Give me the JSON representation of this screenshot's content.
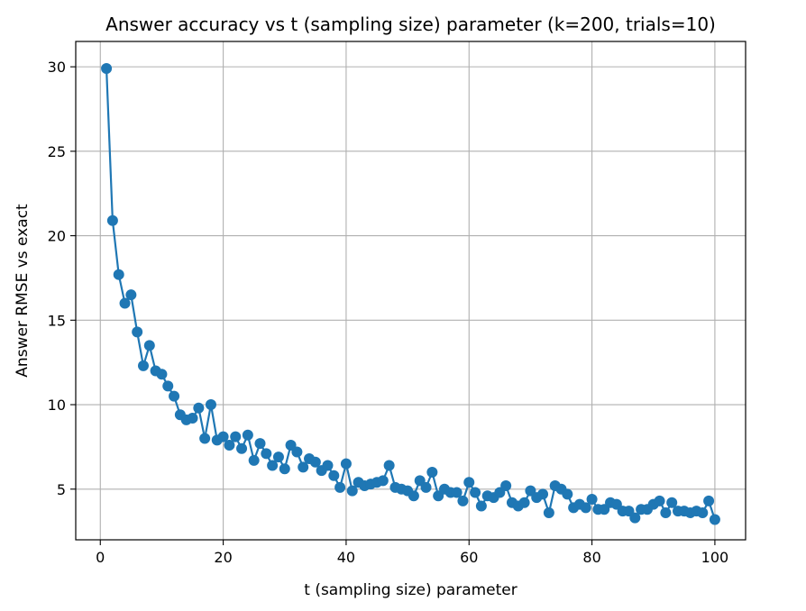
{
  "chart_data": {
    "type": "line",
    "title": "Answer accuracy vs t (sampling size) parameter (k=200, trials=10)",
    "xlabel": "t (sampling size) parameter",
    "ylabel": "Answer RMSE vs exact",
    "xlim": [
      -4,
      105
    ],
    "ylim": [
      2,
      31.5
    ],
    "xticks": [
      0,
      20,
      40,
      60,
      80,
      100
    ],
    "yticks": [
      5,
      10,
      15,
      20,
      25,
      30
    ],
    "grid": true,
    "marker": "circle",
    "color": "#1f77b4",
    "series": [
      {
        "x": [
          1,
          2,
          3,
          4,
          5,
          6,
          7,
          8,
          9,
          10,
          11,
          12,
          13,
          14,
          15,
          16,
          17,
          18,
          19,
          20,
          21,
          22,
          23,
          24,
          25,
          26,
          27,
          28,
          29,
          30,
          31,
          32,
          33,
          34,
          35,
          36,
          37,
          38,
          39,
          40,
          41,
          42,
          43,
          44,
          45,
          46,
          47,
          48,
          49,
          50,
          51,
          52,
          53,
          54,
          55,
          56,
          57,
          58,
          59,
          60,
          61,
          62,
          63,
          64,
          65,
          66,
          67,
          68,
          69,
          70,
          71,
          72,
          73,
          74,
          75,
          76,
          77,
          78,
          79,
          80,
          81,
          82,
          83,
          84,
          85,
          86,
          87,
          88,
          89,
          90,
          91,
          92,
          93,
          94,
          95,
          96,
          97,
          98,
          99,
          100
        ],
        "values": [
          29.9,
          20.9,
          17.7,
          16.0,
          16.5,
          14.3,
          12.3,
          13.5,
          12.0,
          11.8,
          11.1,
          10.5,
          9.4,
          9.1,
          9.2,
          9.8,
          8.0,
          10.0,
          7.9,
          8.1,
          7.6,
          8.1,
          7.4,
          8.2,
          6.7,
          7.7,
          7.1,
          6.4,
          6.9,
          6.2,
          7.6,
          7.2,
          6.3,
          6.8,
          6.6,
          6.1,
          6.4,
          5.8,
          5.1,
          6.5,
          4.9,
          5.4,
          5.2,
          5.3,
          5.4,
          5.5,
          6.4,
          5.1,
          5.0,
          4.9,
          4.6,
          5.5,
          5.1,
          6.0,
          4.6,
          5.0,
          4.8,
          4.8,
          4.3,
          5.4,
          4.8,
          4.0,
          4.6,
          4.5,
          4.8,
          5.2,
          4.2,
          4.0,
          4.2,
          4.9,
          4.5,
          4.7,
          3.6,
          5.2,
          5.0,
          4.7,
          3.9,
          4.1,
          3.9,
          4.4,
          3.8,
          3.8,
          4.2,
          4.1,
          3.7,
          3.7,
          3.3,
          3.8,
          3.8,
          4.1,
          4.3,
          3.6,
          4.2,
          3.7,
          3.7,
          3.6,
          3.7,
          3.6,
          4.3,
          3.2
        ]
      }
    ]
  }
}
